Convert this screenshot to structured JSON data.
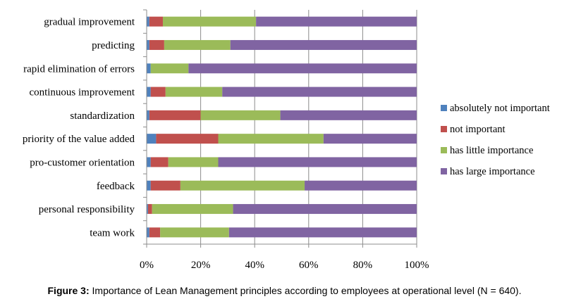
{
  "chart_data": {
    "type": "bar",
    "orientation": "horizontal",
    "stacked": "percent",
    "categories": [
      "gradual improvement",
      "predicting",
      "rapid elimination of errors",
      "continuous improvement",
      "standardization",
      "priority of the value added",
      "pro-customer orientation",
      "feedback",
      "personal responsibility",
      "team work"
    ],
    "series": [
      {
        "name": "absolutely not important",
        "color": "#4F81BD",
        "values": [
          1,
          1,
          1.5,
          1.5,
          1,
          3.5,
          1.5,
          1.5,
          0.5,
          1
        ]
      },
      {
        "name": "not important",
        "color": "#C0504D",
        "values": [
          5,
          5.5,
          0,
          5.5,
          19,
          23,
          6.5,
          11,
          1.5,
          4
        ]
      },
      {
        "name": "has little importance",
        "color": "#9BBB59",
        "values": [
          34.5,
          24.5,
          14,
          21,
          29.5,
          39,
          18.5,
          46,
          30,
          25.5
        ]
      },
      {
        "name": "has large importance",
        "color": "#8064A2",
        "values": [
          59.5,
          69,
          84.5,
          72,
          50.5,
          34.5,
          73.5,
          41.5,
          68,
          69.5
        ]
      }
    ],
    "x_ticks": [
      "0%",
      "20%",
      "40%",
      "60%",
      "80%",
      "100%"
    ],
    "xlim": [
      0,
      100
    ],
    "grid": "vertical",
    "legend": "right"
  },
  "caption": {
    "label": "Figure 3:",
    "text": " Importance of Lean Management principles according to employees at operational level (N = 640)."
  }
}
